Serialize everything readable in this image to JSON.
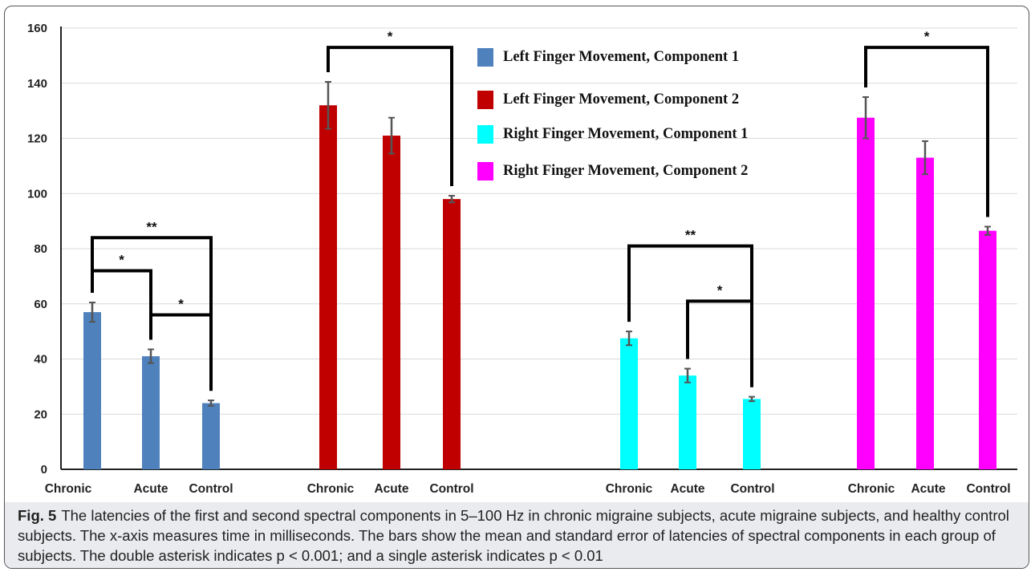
{
  "chart_data": {
    "type": "bar",
    "ylim": [
      0,
      160
    ],
    "yticks": [
      0,
      20,
      40,
      60,
      80,
      100,
      120,
      140,
      160
    ],
    "grid": true,
    "legend_placement": "top-center",
    "groups": [
      {
        "series": "Left Finger Movement, Component 1",
        "color": "#4f81bd",
        "categories": [
          "Chronic",
          "Acute",
          "Control"
        ],
        "values": [
          57,
          41,
          24
        ],
        "errors": [
          3.5,
          2.5,
          1.0
        ]
      },
      {
        "series": "Left Finger Movement, Component 2",
        "color": "#c00000",
        "categories": [
          "Chronic",
          "Acute",
          "Control"
        ],
        "values": [
          132,
          121,
          98
        ],
        "errors": [
          8.5,
          6.5,
          1.2
        ]
      },
      {
        "series": "Right Finger Movement, Component 1",
        "color": "#00ffff",
        "categories": [
          "Chronic",
          "Acute",
          "Control"
        ],
        "values": [
          47.5,
          34,
          25.5
        ],
        "errors": [
          2.5,
          2.5,
          0.8
        ]
      },
      {
        "series": "Right Finger Movement, Component 2",
        "color": "#ff00ff",
        "categories": [
          "Chronic",
          "Acute",
          "Control"
        ],
        "values": [
          127.5,
          113,
          86.5
        ],
        "errors": [
          7.5,
          6.0,
          1.5
        ]
      }
    ],
    "significance": [
      {
        "group": 0,
        "from": 0,
        "to": 2,
        "label": "**",
        "level": 84
      },
      {
        "group": 0,
        "from": 0,
        "to": 1,
        "label": "*",
        "level": 72
      },
      {
        "group": 0,
        "from": 1,
        "to": 2,
        "label": "*",
        "level": 56
      },
      {
        "group": 1,
        "from": 0,
        "to": 2,
        "label": "*",
        "level": 153
      },
      {
        "group": 2,
        "from": 0,
        "to": 2,
        "label": "**",
        "level": 81
      },
      {
        "group": 2,
        "from": 1,
        "to": 2,
        "label": "*",
        "level": 61
      },
      {
        "group": 3,
        "from": 0,
        "to": 2,
        "label": "*",
        "level": 153
      }
    ]
  },
  "caption": {
    "label": "Fig. 5",
    "text": "The latencies of the first and second spectral components in 5–100 Hz in chronic migraine subjects, acute migraine subjects, and healthy control subjects. The x-axis measures time in milliseconds. The bars show the mean and standard error of latencies of spectral components in each group of subjects. The double asterisk indicates p < 0.001; and a single asterisk indicates p < 0.01"
  }
}
